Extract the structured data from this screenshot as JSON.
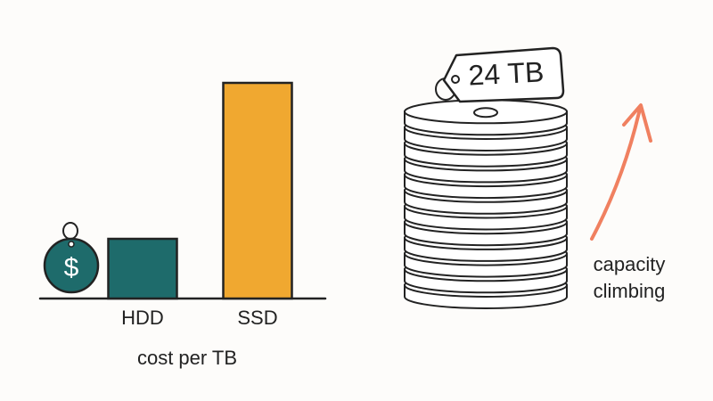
{
  "chart_data": {
    "type": "bar",
    "categories": [
      "HDD",
      "SSD"
    ],
    "values": [
      67,
      242
    ],
    "colors": [
      "#1e6b6b",
      "#f0a830"
    ],
    "ylim": [
      0,
      250
    ],
    "xlabel": "cost per TB",
    "icon_label": "$",
    "tag_label": "24 TB",
    "annotation": [
      "capacity",
      "climbing"
    ]
  }
}
